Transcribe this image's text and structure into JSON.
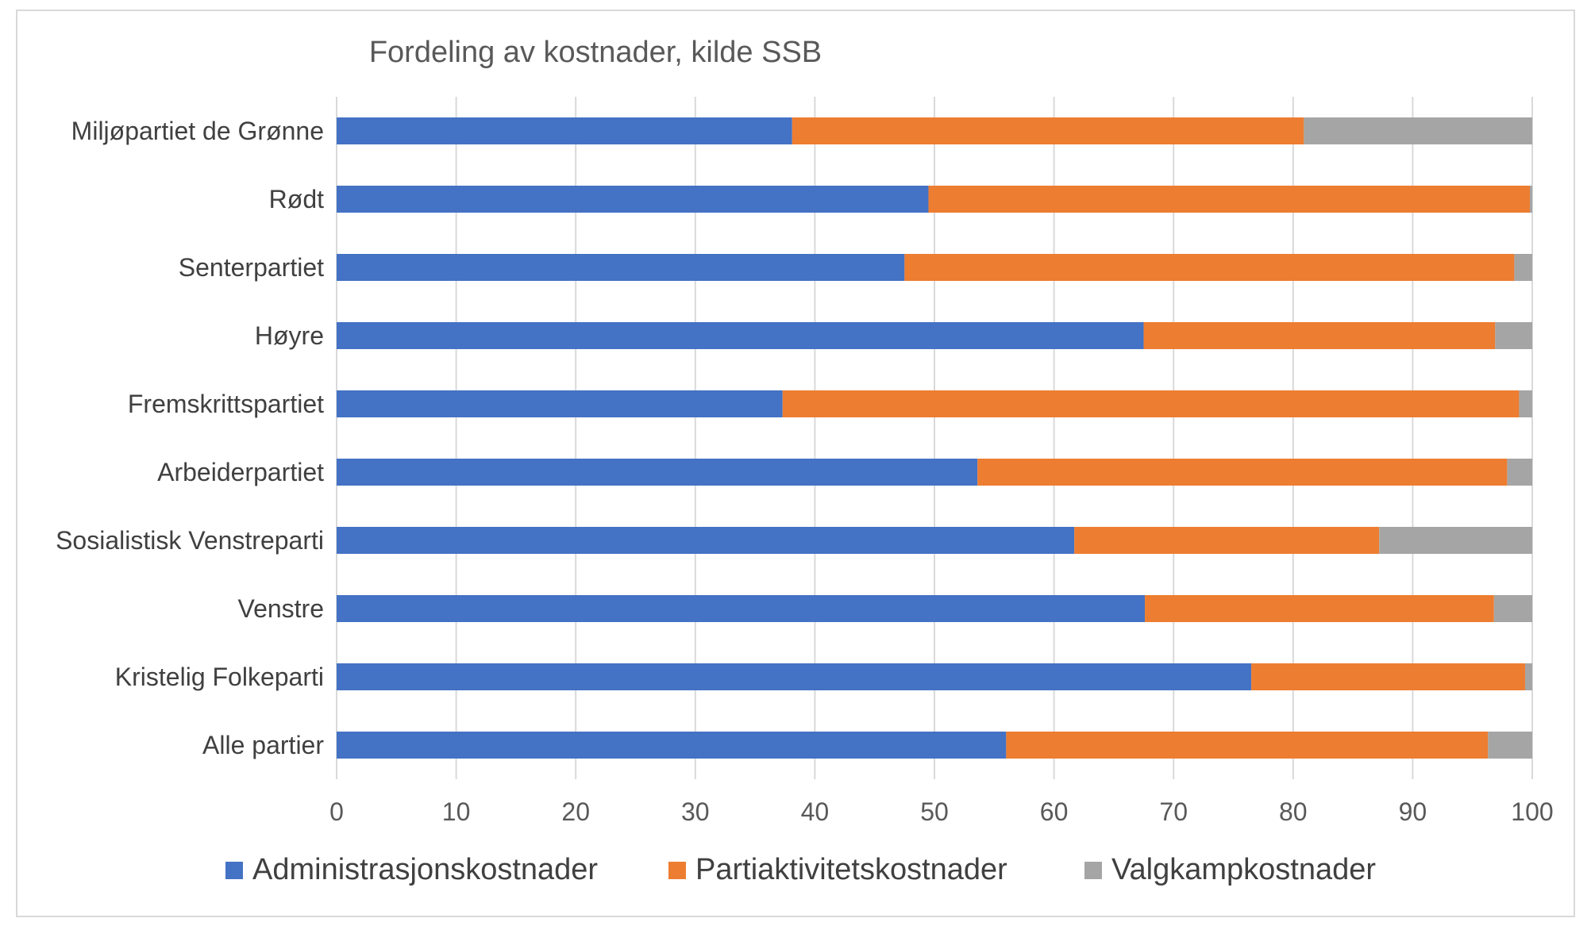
{
  "chart_data": {
    "type": "bar",
    "orientation": "horizontal",
    "stacked": true,
    "title": "Fordeling av kostnader, kilde SSB",
    "categories": [
      "Miljøpartiet de Grønne",
      "Rødt",
      "Senterpartiet",
      "Høyre",
      "Fremskrittspartiet",
      "Arbeiderpartiet",
      "Sosialistisk Venstreparti",
      "Venstre",
      "Kristelig Folkeparti",
      "Alle partier"
    ],
    "series": [
      {
        "name": "Administrasjonskostnader",
        "color": "#4472c4",
        "values": [
          38.1,
          49.5,
          47.5,
          67.5,
          37.3,
          53.6,
          61.7,
          67.6,
          76.5,
          56.0
        ]
      },
      {
        "name": "Partiaktivitetskostnader",
        "color": "#ed7d31",
        "values": [
          42.8,
          50.3,
          51.0,
          29.4,
          61.6,
          44.3,
          25.5,
          29.2,
          22.9,
          40.3
        ]
      },
      {
        "name": "Valgkampkostnader",
        "color": "#a5a5a5",
        "values": [
          19.1,
          0.2,
          1.5,
          3.1,
          1.1,
          2.1,
          12.8,
          3.2,
          0.6,
          3.7
        ]
      }
    ],
    "xlim": [
      0,
      100
    ],
    "xticks": [
      "0",
      "10",
      "20",
      "30",
      "40",
      "50",
      "60",
      "70",
      "80",
      "90",
      "100"
    ],
    "grid": true,
    "legend_position": "bottom"
  }
}
